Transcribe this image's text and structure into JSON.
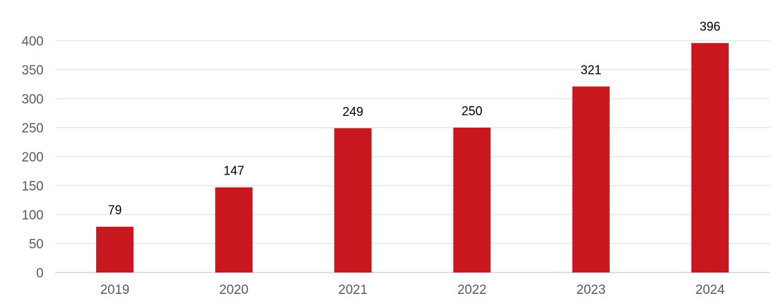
{
  "chart_data": {
    "type": "bar",
    "categories": [
      "2019",
      "2020",
      "2021",
      "2022",
      "2023",
      "2024"
    ],
    "values": [
      79,
      147,
      249,
      250,
      321,
      396
    ],
    "title": "",
    "xlabel": "",
    "ylabel": "",
    "ylim": [
      0,
      400
    ],
    "yticks": [
      0,
      50,
      100,
      150,
      200,
      250,
      300,
      350,
      400
    ],
    "grid": true,
    "legend": "none",
    "data_labels": true,
    "bar_color": "#C8171F",
    "grid_color": "#d9d9d9"
  }
}
